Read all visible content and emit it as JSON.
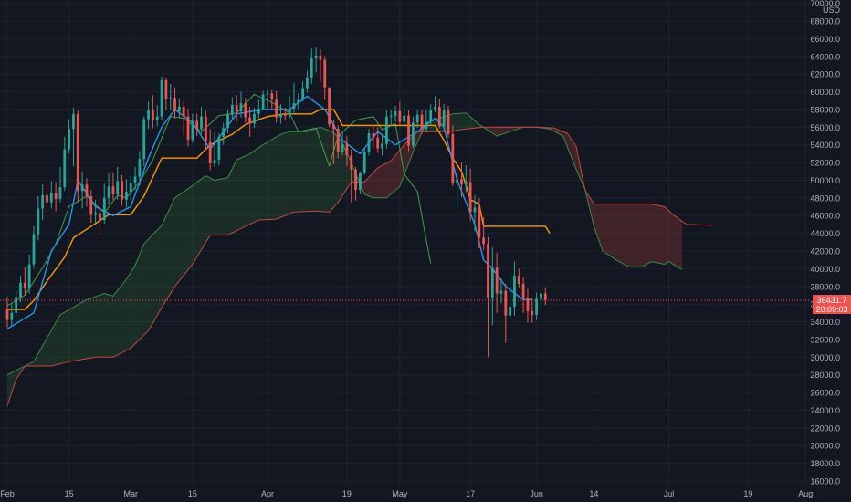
{
  "chart_data": {
    "type": "candlestick",
    "title": "",
    "currency": "USD",
    "ylim": [
      15000,
      70000
    ],
    "y_ticks": [
      16000,
      18000,
      20000,
      22000,
      24000,
      26000,
      28000,
      30000,
      32000,
      34000,
      36000,
      38000,
      40000,
      42000,
      44000,
      46000,
      48000,
      50000,
      52000,
      54000,
      56000,
      58000,
      60000,
      62000,
      64000,
      66000,
      68000,
      70000
    ],
    "x_ticks": [
      {
        "label": "Feb",
        "day": 0
      },
      {
        "label": "15",
        "day": 14
      },
      {
        "label": "Mar",
        "day": 28
      },
      {
        "label": "15",
        "day": 42
      },
      {
        "label": "Apr",
        "day": 59
      },
      {
        "label": "19",
        "day": 77
      },
      {
        "label": "May",
        "day": 89
      },
      {
        "label": "17",
        "day": 105
      },
      {
        "label": "Jun",
        "day": 120
      },
      {
        "label": "14",
        "day": 133
      },
      {
        "label": "Jul",
        "day": 150
      },
      {
        "label": "19",
        "day": 168
      },
      {
        "label": "Aug",
        "day": 181
      }
    ],
    "current_price": {
      "label": "36431.7",
      "countdown": "20:09:03",
      "value": 36431.7
    },
    "colors": {
      "background": "#131722",
      "grid": "#1e222d",
      "axis_text": "#b2b5be",
      "up": "#26a69a",
      "down": "#ef5350",
      "conversion": "#2196f3",
      "base": "#ff9800",
      "lagging": "#43a047",
      "span_a": "#388e3c",
      "span_b": "#c2493f",
      "cloud_bull": "rgba(56,142,60,0.20)",
      "cloud_bear": "rgba(194,73,63,0.25)",
      "price_line": "#ef5350"
    },
    "candles": [
      [
        35500,
        34200,
        36800,
        33400
      ],
      [
        34200,
        35000,
        36000,
        33500
      ],
      [
        35000,
        36800,
        37500,
        34600
      ],
      [
        36800,
        38400,
        39200,
        36200
      ],
      [
        38400,
        37800,
        40200,
        37000
      ],
      [
        37800,
        40500,
        41600,
        37200
      ],
      [
        40500,
        43900,
        44800,
        40000
      ],
      [
        43900,
        46800,
        48200,
        43200
      ],
      [
        46800,
        48300,
        49500,
        45500
      ],
      [
        48300,
        47500,
        49600,
        46200
      ],
      [
        47500,
        48600,
        49900,
        46800
      ],
      [
        48600,
        47900,
        49800,
        46500
      ],
      [
        47900,
        49200,
        51500,
        47500
      ],
      [
        49200,
        53500,
        54900,
        48800
      ],
      [
        53500,
        55800,
        56900,
        53000
      ],
      [
        55800,
        57500,
        58200,
        51600
      ],
      [
        57500,
        48800,
        57900,
        47500
      ],
      [
        48800,
        49500,
        51000,
        46800
      ],
      [
        49500,
        48200,
        50200,
        47000
      ],
      [
        48200,
        46100,
        48900,
        45200
      ],
      [
        46100,
        46300,
        47800,
        44900
      ],
      [
        46300,
        45500,
        47900,
        43800
      ],
      [
        45500,
        48000,
        49600,
        45100
      ],
      [
        48000,
        49300,
        50800,
        47200
      ],
      [
        49300,
        48400,
        50900,
        47800
      ],
      [
        48400,
        49900,
        51500,
        47800
      ],
      [
        49900,
        47800,
        50600,
        47100
      ],
      [
        47800,
        48700,
        50100,
        46900
      ],
      [
        48700,
        49700,
        50500,
        47800
      ],
      [
        49700,
        50400,
        51500,
        48900
      ],
      [
        50400,
        52400,
        53300,
        49400
      ],
      [
        52400,
        56900,
        57200,
        51600
      ],
      [
        56900,
        58000,
        58900,
        55800
      ],
      [
        58000,
        56800,
        59600,
        55900
      ],
      [
        56800,
        57200,
        58500,
        56100
      ],
      [
        57200,
        61300,
        61700,
        56800
      ],
      [
        61300,
        59200,
        61500,
        57900
      ],
      [
        59200,
        59300,
        60900,
        57900
      ],
      [
        59300,
        57800,
        60500,
        57000
      ],
      [
        57800,
        58300,
        59300,
        57100
      ],
      [
        58300,
        57200,
        59000,
        55100
      ],
      [
        57200,
        54600,
        58100,
        53800
      ],
      [
        54600,
        56700,
        57500,
        54200
      ],
      [
        56700,
        55800,
        57500,
        55000
      ],
      [
        55800,
        57200,
        58300,
        55200
      ],
      [
        57200,
        54300,
        57900,
        53500
      ],
      [
        54300,
        51900,
        55800,
        51100
      ],
      [
        51900,
        52300,
        55300,
        51500
      ],
      [
        52300,
        54900,
        55300,
        51700
      ],
      [
        54900,
        55900,
        56500,
        54000
      ],
      [
        55900,
        57400,
        57900,
        55300
      ],
      [
        57400,
        58500,
        59400,
        56900
      ],
      [
        58500,
        57800,
        59600,
        56600
      ],
      [
        57800,
        58700,
        60000,
        57100
      ],
      [
        58700,
        57100,
        59300,
        56500
      ],
      [
        57100,
        56400,
        58300,
        54900
      ],
      [
        56400,
        57500,
        58200,
        55900
      ],
      [
        57500,
        58100,
        59100,
        56700
      ],
      [
        58100,
        59700,
        60100,
        57900
      ],
      [
        59700,
        59800,
        60200,
        58100
      ],
      [
        59800,
        59100,
        60200,
        57900
      ],
      [
        59100,
        57100,
        60100,
        56500
      ],
      [
        57100,
        57500,
        58600,
        56400
      ],
      [
        57500,
        57300,
        58200,
        56800
      ],
      [
        57300,
        58100,
        59500,
        57000
      ],
      [
        58100,
        58700,
        61000,
        57400
      ],
      [
        58700,
        59100,
        59800,
        57900
      ],
      [
        59100,
        60400,
        61200,
        58900
      ],
      [
        60400,
        61600,
        62400,
        59900
      ],
      [
        61600,
        63800,
        64900,
        60900
      ],
      [
        63800,
        64100,
        65000,
        62200
      ],
      [
        64100,
        63600,
        64800,
        61100
      ],
      [
        63600,
        60500,
        64000,
        59100
      ],
      [
        60500,
        56300,
        60500,
        56000
      ],
      [
        56300,
        55800,
        56800,
        51800
      ],
      [
        55800,
        53200,
        56200,
        52500
      ],
      [
        53200,
        54100,
        55500,
        52800
      ],
      [
        54100,
        52800,
        55000,
        51600
      ],
      [
        52800,
        51200,
        53500,
        47500
      ],
      [
        51200,
        48900,
        51500,
        47700
      ],
      [
        48900,
        50900,
        51000,
        48400
      ],
      [
        50900,
        53200,
        53500,
        50600
      ],
      [
        53200,
        55300,
        55800,
        52800
      ],
      [
        55300,
        54800,
        56300,
        53700
      ],
      [
        54800,
        53600,
        56000,
        53100
      ],
      [
        53600,
        54100,
        55200,
        52800
      ],
      [
        54100,
        57200,
        57900,
        53600
      ],
      [
        57200,
        57300,
        57900,
        56100
      ],
      [
        57300,
        57800,
        58400,
        56600
      ],
      [
        57800,
        56600,
        58900,
        56200
      ],
      [
        56600,
        57300,
        58600,
        56000
      ],
      [
        57300,
        53900,
        57900,
        53300
      ],
      [
        53900,
        56500,
        57200,
        53600
      ],
      [
        56500,
        57400,
        58000,
        55900
      ],
      [
        57400,
        55800,
        57900,
        55200
      ],
      [
        55800,
        56600,
        58000,
        55400
      ],
      [
        56600,
        57900,
        58600,
        56200
      ],
      [
        57900,
        58300,
        59500,
        57700
      ],
      [
        58300,
        56100,
        59200,
        55900
      ],
      [
        56100,
        57900,
        58600,
        55800
      ],
      [
        57900,
        55200,
        58400,
        54800
      ],
      [
        55200,
        49700,
        56200,
        49300
      ],
      [
        49700,
        50100,
        51200,
        46900
      ],
      [
        50100,
        49500,
        52000,
        48100
      ],
      [
        49500,
        49800,
        51700,
        48600
      ],
      [
        49800,
        46400,
        51300,
        45400
      ],
      [
        46400,
        46900,
        48300,
        44200
      ],
      [
        46900,
        43500,
        48000,
        42300
      ],
      [
        43500,
        42800,
        45800,
        42100
      ],
      [
        42800,
        36700,
        43600,
        30000
      ],
      [
        36700,
        40100,
        42400,
        33600
      ],
      [
        40100,
        37200,
        41800,
        35000
      ],
      [
        37200,
        37500,
        38900,
        36100
      ],
      [
        37500,
        34700,
        38300,
        31600
      ],
      [
        34700,
        35700,
        39500,
        34300
      ],
      [
        35700,
        39200,
        40800,
        34700
      ],
      [
        39200,
        38300,
        40000,
        37900
      ],
      [
        38300,
        36700,
        39000,
        35000
      ],
      [
        36700,
        35200,
        37700,
        33900
      ],
      [
        35200,
        34800,
        36700,
        33900
      ],
      [
        34800,
        36600,
        37300,
        34200
      ],
      [
        36600,
        37200,
        37500,
        35700
      ],
      [
        37200,
        36431.7,
        37900,
        35900
      ]
    ],
    "conversion_line": [
      [
        0,
        33200
      ],
      [
        6,
        35000
      ],
      [
        10,
        42000
      ],
      [
        14,
        45000
      ],
      [
        16,
        50000
      ],
      [
        20,
        47000
      ],
      [
        24,
        46000
      ],
      [
        28,
        47000
      ],
      [
        32,
        52500
      ],
      [
        35,
        56000
      ],
      [
        38,
        58000
      ],
      [
        42,
        56500
      ],
      [
        46,
        53500
      ],
      [
        52,
        57500
      ],
      [
        58,
        58000
      ],
      [
        64,
        58000
      ],
      [
        68,
        59500
      ],
      [
        72,
        58000
      ],
      [
        76,
        54500
      ],
      [
        80,
        53000
      ],
      [
        84,
        55500
      ],
      [
        88,
        54000
      ],
      [
        93,
        55500
      ],
      [
        97,
        57000
      ],
      [
        99,
        56000
      ],
      [
        102,
        50000
      ],
      [
        106,
        45000
      ],
      [
        108,
        41000
      ],
      [
        110,
        40000
      ],
      [
        113,
        38000
      ],
      [
        117,
        36500
      ],
      [
        119,
        36500
      ]
    ],
    "base_line": [
      [
        0,
        35400
      ],
      [
        4,
        35400
      ],
      [
        6,
        36400
      ],
      [
        9,
        38600
      ],
      [
        13,
        41300
      ],
      [
        15,
        43500
      ],
      [
        19,
        44800
      ],
      [
        23,
        46100
      ],
      [
        28,
        46100
      ],
      [
        31,
        48200
      ],
      [
        35,
        52500
      ],
      [
        43,
        52500
      ],
      [
        46,
        54000
      ],
      [
        51,
        55200
      ],
      [
        54,
        56300
      ],
      [
        59,
        57200
      ],
      [
        63,
        57500
      ],
      [
        69,
        57500
      ],
      [
        71,
        58000
      ],
      [
        74,
        58000
      ],
      [
        76,
        56200
      ],
      [
        86,
        56200
      ],
      [
        90,
        56200
      ],
      [
        97,
        56200
      ],
      [
        99,
        54500
      ],
      [
        101,
        52500
      ],
      [
        103,
        51000
      ],
      [
        105,
        47800
      ],
      [
        107,
        47300
      ],
      [
        108,
        44800
      ],
      [
        122,
        44800
      ],
      [
        123,
        44000
      ]
    ],
    "lagging_span": [
      [
        0,
        35800
      ],
      [
        4,
        37000
      ],
      [
        8,
        40100
      ],
      [
        11,
        42800
      ],
      [
        14,
        47000
      ],
      [
        18,
        48200
      ],
      [
        22,
        46300
      ],
      [
        25,
        48300
      ],
      [
        27,
        48000
      ],
      [
        30,
        49800
      ],
      [
        33,
        52300
      ],
      [
        37,
        57200
      ],
      [
        40,
        57000
      ],
      [
        44,
        55500
      ],
      [
        48,
        57300
      ],
      [
        52,
        57600
      ],
      [
        56,
        59700
      ],
      [
        60,
        58800
      ],
      [
        64,
        57600
      ],
      [
        66,
        55500
      ],
      [
        70,
        55900
      ],
      [
        73,
        51600
      ],
      [
        75,
        55000
      ],
      [
        79,
        56800
      ],
      [
        83,
        57200
      ],
      [
        85,
        55700
      ],
      [
        88,
        56400
      ],
      [
        90,
        50700
      ],
      [
        93,
        48700
      ],
      [
        95,
        43200
      ],
      [
        96,
        40600
      ]
    ],
    "span_a": [
      [
        0,
        28000
      ],
      [
        6,
        29500
      ],
      [
        12,
        34800
      ],
      [
        18,
        36500
      ],
      [
        22,
        37200
      ],
      [
        24,
        36900
      ],
      [
        27,
        38800
      ],
      [
        29,
        40400
      ],
      [
        31,
        42800
      ],
      [
        35,
        44900
      ],
      [
        38,
        48000
      ],
      [
        42,
        49400
      ],
      [
        45,
        50500
      ],
      [
        47,
        50000
      ],
      [
        50,
        50300
      ],
      [
        52,
        52300
      ],
      [
        55,
        53000
      ],
      [
        58,
        54000
      ],
      [
        62,
        55200
      ],
      [
        64,
        55500
      ],
      [
        68,
        55500
      ],
      [
        71,
        56000
      ],
      [
        74,
        55400
      ],
      [
        76,
        54200
      ],
      [
        78,
        52000
      ],
      [
        81,
        48400
      ],
      [
        83,
        48000
      ],
      [
        86,
        48000
      ],
      [
        89,
        49300
      ],
      [
        92,
        53200
      ],
      [
        95,
        56500
      ],
      [
        98,
        57000
      ],
      [
        101,
        57500
      ],
      [
        104,
        57600
      ],
      [
        107,
        56300
      ],
      [
        111,
        55000
      ],
      [
        114,
        55500
      ],
      [
        117,
        56000
      ],
      [
        120,
        56000
      ],
      [
        123,
        55800
      ],
      [
        126,
        55000
      ],
      [
        129,
        51200
      ],
      [
        131,
        49000
      ],
      [
        133,
        44800
      ],
      [
        135,
        42000
      ],
      [
        138,
        41000
      ],
      [
        141,
        40200
      ],
      [
        144,
        40200
      ],
      [
        146,
        40800
      ],
      [
        149,
        40500
      ],
      [
        150,
        40800
      ],
      [
        153,
        39900
      ]
    ],
    "span_b": [
      [
        0,
        24500
      ],
      [
        2,
        27500
      ],
      [
        4,
        29000
      ],
      [
        10,
        29000
      ],
      [
        14,
        29500
      ],
      [
        20,
        30000
      ],
      [
        24,
        30000
      ],
      [
        28,
        31000
      ],
      [
        32,
        33000
      ],
      [
        35,
        35600
      ],
      [
        38,
        38000
      ],
      [
        42,
        40500
      ],
      [
        46,
        43800
      ],
      [
        50,
        43800
      ],
      [
        54,
        44800
      ],
      [
        57,
        45500
      ],
      [
        61,
        45600
      ],
      [
        65,
        46400
      ],
      [
        70,
        46500
      ],
      [
        73,
        46400
      ],
      [
        75,
        47500
      ],
      [
        78,
        49800
      ],
      [
        81,
        49800
      ],
      [
        84,
        51400
      ],
      [
        87,
        52200
      ],
      [
        90,
        54000
      ],
      [
        93,
        55500
      ],
      [
        96,
        55500
      ],
      [
        100,
        55500
      ],
      [
        104,
        55800
      ],
      [
        108,
        56000
      ],
      [
        112,
        56000
      ],
      [
        116,
        56000
      ],
      [
        120,
        56000
      ],
      [
        124,
        55900
      ],
      [
        127,
        55300
      ],
      [
        129,
        53800
      ],
      [
        131,
        48900
      ],
      [
        133,
        47300
      ],
      [
        136,
        47300
      ],
      [
        140,
        47300
      ],
      [
        144,
        47300
      ],
      [
        146,
        47300
      ],
      [
        149,
        47000
      ],
      [
        151,
        46100
      ],
      [
        154,
        45000
      ],
      [
        160,
        44900
      ]
    ]
  }
}
